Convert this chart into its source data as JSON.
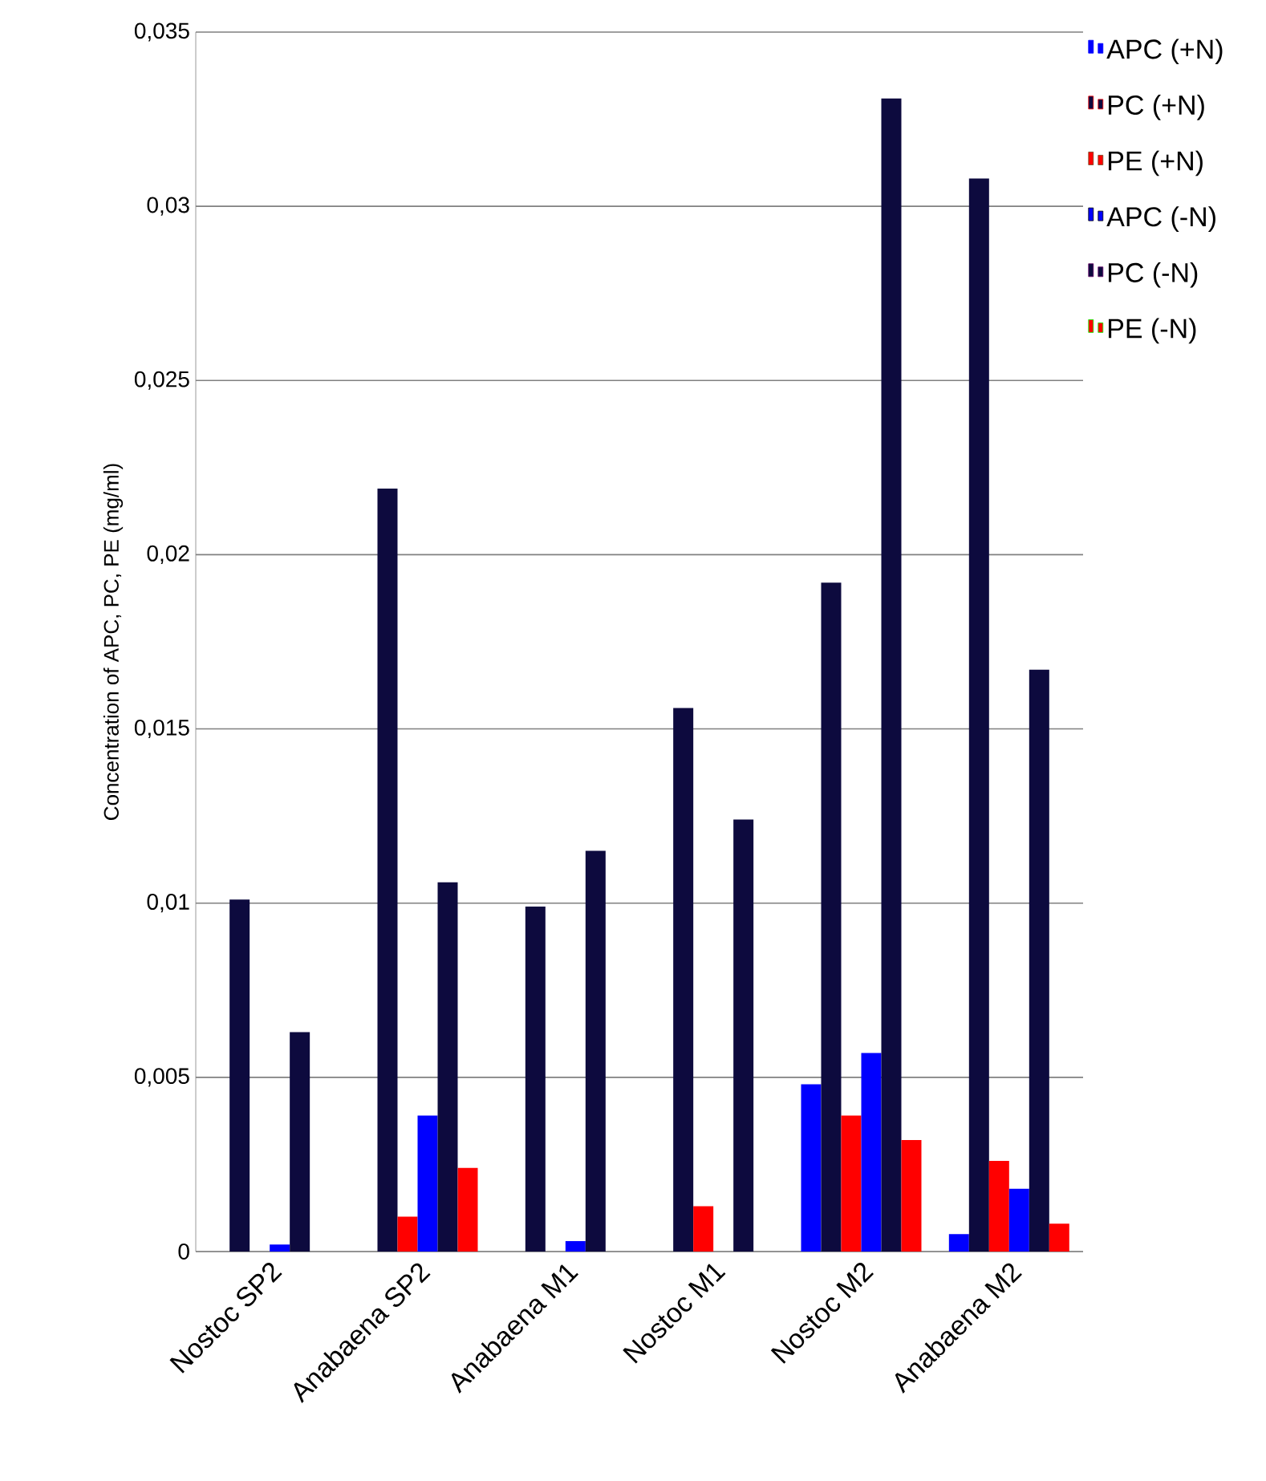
{
  "chart_data": {
    "type": "bar",
    "ylabel": "Concentration of APC, PC, PE (mg/ml)",
    "categories": [
      "Nostoc SP2",
      "Anabaena SP2",
      "Anabaena M1",
      "Nostoc M1",
      "Nostoc M2",
      "Anabaena M2"
    ],
    "series": [
      {
        "name": "APC (+N)",
        "color": "#0000ff",
        "values": [
          null,
          null,
          null,
          null,
          0.0048,
          0.0005
        ]
      },
      {
        "name": "PC (+N)",
        "color": "#0d0a3e",
        "values": [
          0.0101,
          0.0219,
          0.0099,
          0.0156,
          0.0192,
          0.0308
        ]
      },
      {
        "name": "PE (+N)",
        "color": "#ff0000",
        "values": [
          null,
          0.001,
          null,
          0.0013,
          0.0039,
          0.0026
        ]
      },
      {
        "name": "APC (-N)",
        "color": "#0000ff",
        "values": [
          0.0002,
          0.0039,
          0.0003,
          null,
          0.0057,
          0.0018
        ]
      },
      {
        "name": "PC (-N)",
        "color": "#0d0a3e",
        "values": [
          0.0063,
          0.0106,
          0.0115,
          0.0124,
          0.0331,
          0.0167
        ]
      },
      {
        "name": "PE (-N)",
        "color": "#ff0000",
        "values": [
          null,
          0.0024,
          null,
          null,
          0.0032,
          0.0008
        ]
      }
    ],
    "ylim": [
      0,
      0.035
    ],
    "yticks": [
      0,
      {
        "value": 0.005,
        "label": "0,005"
      },
      {
        "value": 0.01,
        "label": "0,01"
      },
      {
        "value": 0.015,
        "label": "0,015"
      },
      {
        "value": 0.02,
        "label": "0,02"
      },
      {
        "value": 0.025,
        "label": "0,025"
      },
      {
        "value": 0.03,
        "label": "0,03"
      },
      {
        "value": 0.035,
        "label": "0,035"
      }
    ],
    "grid": "y",
    "legend": "right"
  }
}
